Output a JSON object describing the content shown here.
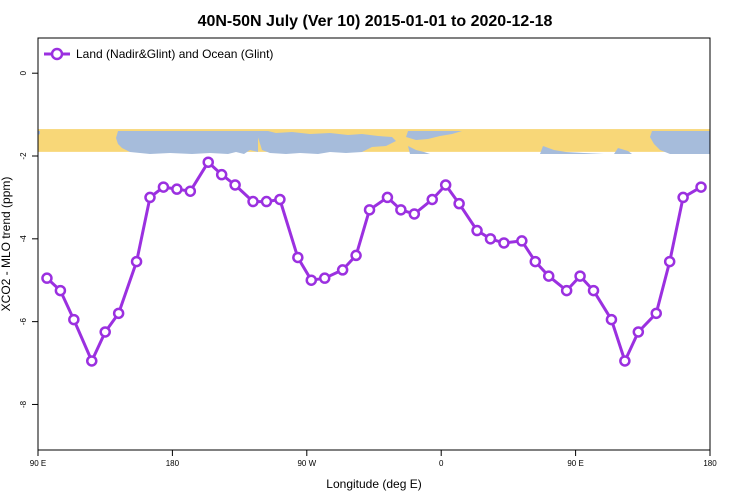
{
  "chart_data": {
    "type": "line",
    "title": "40N-50N July (Ver 10)   2015-01-01 to 2020-12-18",
    "xlabel": "Longitude (deg E)",
    "ylabel": "XCO2 - MLO trend (ppm)",
    "xlim": [
      0,
      15
    ],
    "ylim": [
      -9.1,
      0.85
    ],
    "x_ticks": [
      {
        "value": 0,
        "label": "90 E"
      },
      {
        "value": 3,
        "label": "180"
      },
      {
        "value": 6,
        "label": "90 W"
      },
      {
        "value": 9,
        "label": "0"
      },
      {
        "value": 12,
        "label": "90 E"
      },
      {
        "value": 15,
        "label": "180"
      }
    ],
    "y_ticks": [
      {
        "value": 0,
        "label": "0"
      },
      {
        "value": -2,
        "label": "-2"
      },
      {
        "value": -4,
        "label": "-4"
      },
      {
        "value": -6,
        "label": "-6"
      },
      {
        "value": -8,
        "label": "-8"
      }
    ],
    "legend": "top-left",
    "grid": false,
    "land_ocean_strip": {
      "y_range": [
        -1.9,
        -1.35
      ],
      "land_color": "#f8d778",
      "ocean_color": "#a6bcdb"
    },
    "series": [
      {
        "name": "Land (Nadir&Glint) and Ocean (Glint)",
        "color": "#9b30e0",
        "x": [
          0.2,
          0.5,
          0.8,
          1.2,
          1.5,
          1.8,
          2.2,
          2.5,
          2.8,
          3.1,
          3.4,
          3.8,
          4.1,
          4.4,
          4.8,
          5.1,
          5.4,
          5.8,
          6.1,
          6.4,
          6.8,
          7.1,
          7.4,
          7.8,
          8.1,
          8.4,
          8.8,
          9.1,
          9.4,
          9.8,
          10.1,
          10.4,
          10.8,
          11.1,
          11.4,
          11.8,
          12.1,
          12.4,
          12.8,
          13.1,
          13.4,
          13.8,
          14.1,
          14.4,
          14.8
        ],
        "y": [
          -4.95,
          -5.25,
          -5.95,
          -6.95,
          -6.25,
          -5.8,
          -4.55,
          -3.0,
          -2.75,
          -2.8,
          -2.85,
          -2.15,
          -2.45,
          -2.7,
          -3.1,
          -3.1,
          -3.05,
          -4.45,
          -5.0,
          -4.95,
          -4.75,
          -4.4,
          -3.3,
          -3.0,
          -3.3,
          -3.4,
          -3.05,
          -2.7,
          -3.15,
          -3.8,
          -4.0,
          -4.1,
          -4.05,
          -4.55,
          -4.9,
          -5.25,
          -4.9,
          -5.25,
          -5.95,
          -6.95,
          -6.25,
          -5.8,
          -4.55,
          -3.0,
          -2.75
        ]
      }
    ]
  }
}
